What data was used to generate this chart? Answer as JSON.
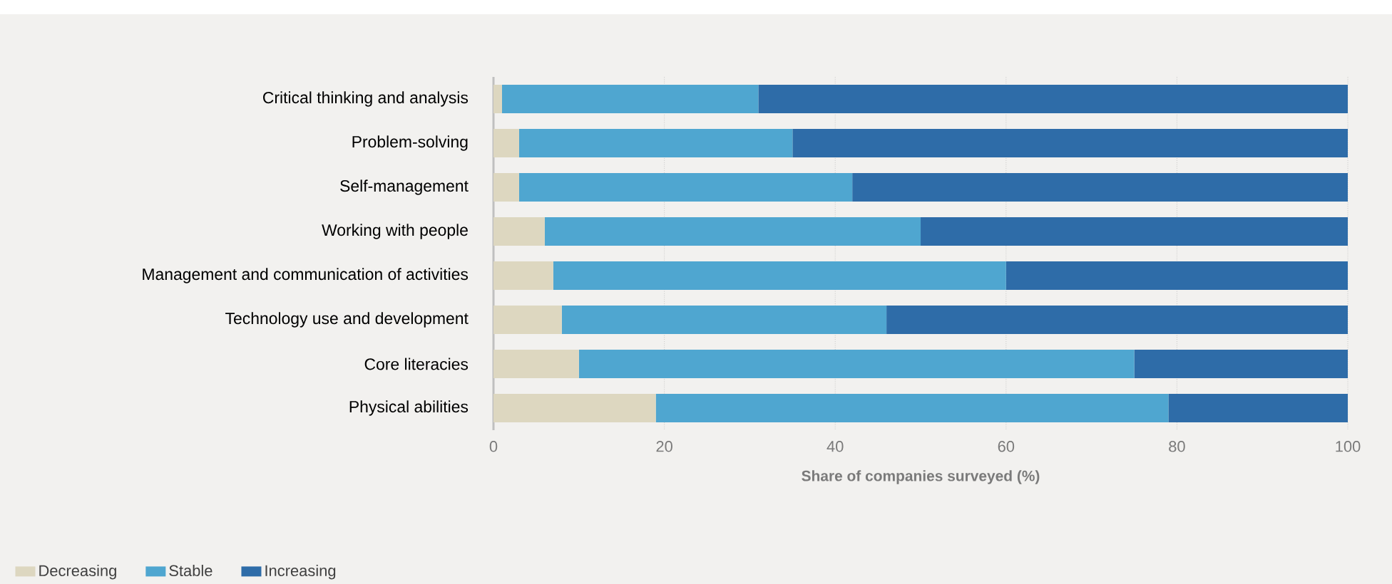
{
  "chart_data": {
    "type": "bar",
    "orientation": "horizontal",
    "stacked": true,
    "xlabel": "Share of companies surveyed (%)",
    "categories": [
      "Critical thinking and analysis",
      "Problem-solving",
      "Self-management",
      "Working with people",
      "Management and communication of activities",
      "Technology use and development",
      "Core literacies",
      "Physical abilities"
    ],
    "series": [
      {
        "name": "Decreasing",
        "color": "#ddd7c0",
        "values": [
          1,
          3,
          3,
          6,
          7,
          8,
          10,
          19
        ]
      },
      {
        "name": "Stable",
        "color": "#4fa6d0",
        "values": [
          30,
          32,
          39,
          44,
          53,
          38,
          65,
          60
        ]
      },
      {
        "name": "Increasing",
        "color": "#2e6ca8",
        "values": [
          69,
          65,
          58,
          50,
          40,
          54,
          25,
          21
        ]
      }
    ],
    "xlim": [
      0,
      100
    ],
    "xticks": [
      0,
      20,
      40,
      60,
      80,
      100
    ],
    "grid": "x",
    "legend": "bottom left"
  }
}
